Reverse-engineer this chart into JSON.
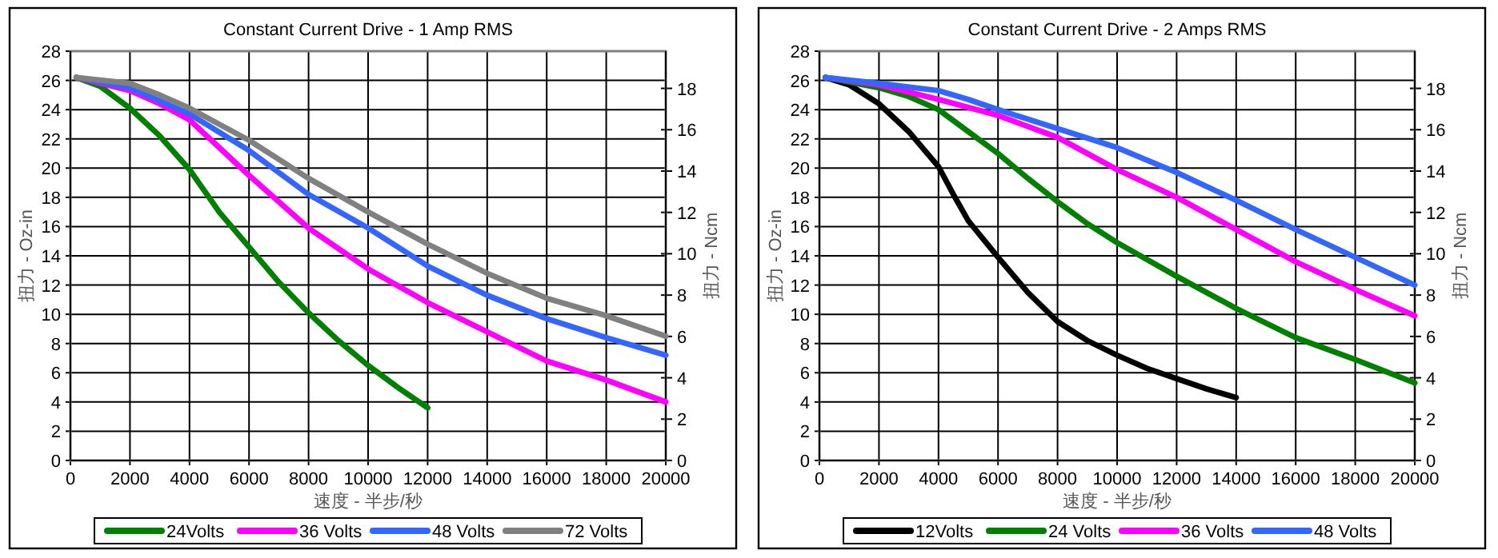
{
  "chart_data": [
    {
      "type": "line",
      "title": "Constant Current Drive - 1 Amp RMS",
      "xlabel": "速度 - 半步/秒",
      "ylabel": "扭力 - Oz-in",
      "y2label": "扭力 - Ncm",
      "xlim": [
        0,
        20000
      ],
      "xticks": [
        0,
        2000,
        4000,
        6000,
        8000,
        10000,
        12000,
        14000,
        16000,
        18000,
        20000
      ],
      "ylim": [
        0,
        28
      ],
      "yticks": [
        0,
        2,
        4,
        6,
        8,
        10,
        12,
        14,
        16,
        18,
        20,
        22,
        24,
        26,
        28
      ],
      "y2lim": [
        0,
        19.8
      ],
      "y2ticks": [
        0,
        2,
        4,
        6,
        8,
        10,
        12,
        14,
        16,
        18
      ],
      "grid": true,
      "legend": "bottom",
      "series": [
        {
          "name": "24Volts",
          "color": "#008000",
          "x": [
            200,
            1000,
            2000,
            3000,
            4000,
            5000,
            6000,
            7000,
            8000,
            9000,
            10000,
            11000,
            12000
          ],
          "values": [
            26.2,
            25.6,
            24.1,
            22.2,
            19.9,
            17.0,
            14.6,
            12.2,
            10.1,
            8.2,
            6.5,
            5.0,
            3.6
          ]
        },
        {
          "name": "36 Volts",
          "color": "#ff00ff",
          "x": [
            200,
            1000,
            2000,
            3000,
            4000,
            5000,
            6000,
            8000,
            10000,
            12000,
            14000,
            16000,
            18000,
            20000
          ],
          "values": [
            26.2,
            25.8,
            25.3,
            24.4,
            23.3,
            21.4,
            19.5,
            15.9,
            13.1,
            10.8,
            8.8,
            6.8,
            5.5,
            4.0
          ]
        },
        {
          "name": "48 Volts",
          "color": "#3366ff",
          "x": [
            200,
            2000,
            4000,
            6000,
            8000,
            10000,
            12000,
            14000,
            16000,
            18000,
            20000
          ],
          "values": [
            26.2,
            25.5,
            23.7,
            21.2,
            18.2,
            15.9,
            13.3,
            11.3,
            9.7,
            8.4,
            7.2
          ]
        },
        {
          "name": "72 Volts",
          "color": "#808080",
          "x": [
            200,
            2000,
            3000,
            4000,
            6000,
            8000,
            10000,
            12000,
            14000,
            16000,
            18000,
            20000
          ],
          "values": [
            26.2,
            25.8,
            25.0,
            24.1,
            21.9,
            19.3,
            17.0,
            14.8,
            12.8,
            11.1,
            9.9,
            8.5
          ]
        }
      ]
    },
    {
      "type": "line",
      "title": "Constant Current Drive - 2 Amps RMS",
      "xlabel": "速度 - 半步/秒",
      "ylabel": "扭力 - Oz-in",
      "y2label": "扭力 - Ncm",
      "xlim": [
        0,
        20000
      ],
      "xticks": [
        0,
        2000,
        4000,
        6000,
        8000,
        10000,
        12000,
        14000,
        16000,
        18000,
        20000
      ],
      "ylim": [
        0,
        28
      ],
      "yticks": [
        0,
        2,
        4,
        6,
        8,
        10,
        12,
        14,
        16,
        18,
        20,
        22,
        24,
        26,
        28
      ],
      "y2lim": [
        0,
        19.8
      ],
      "y2ticks": [
        0,
        2,
        4,
        6,
        8,
        10,
        12,
        14,
        16,
        18
      ],
      "grid": true,
      "legend": "bottom",
      "series": [
        {
          "name": "12Volts",
          "color": "#000000",
          "x": [
            200,
            1000,
            2000,
            3000,
            4000,
            4500,
            5000,
            6000,
            7000,
            8000,
            9000,
            10000,
            11000,
            12000,
            13000,
            14000
          ],
          "values": [
            26.2,
            25.7,
            24.4,
            22.5,
            20.1,
            18.2,
            16.4,
            13.9,
            11.5,
            9.5,
            8.2,
            7.2,
            6.3,
            5.6,
            4.9,
            4.3
          ]
        },
        {
          "name": "24 Volts",
          "color": "#008000",
          "x": [
            200,
            2000,
            3000,
            4000,
            5000,
            6000,
            7000,
            8000,
            9000,
            10000,
            12000,
            14000,
            16000,
            18000,
            20000
          ],
          "values": [
            26.2,
            25.5,
            24.9,
            24.0,
            22.5,
            21.0,
            19.3,
            17.7,
            16.2,
            14.9,
            12.6,
            10.4,
            8.4,
            6.9,
            5.3
          ]
        },
        {
          "name": "36 Volts",
          "color": "#ff00ff",
          "x": [
            200,
            2000,
            4000,
            6000,
            8000,
            10000,
            12000,
            14000,
            16000,
            18000,
            20000
          ],
          "values": [
            26.2,
            25.7,
            24.7,
            23.6,
            22.1,
            19.9,
            18.0,
            15.8,
            13.6,
            11.7,
            9.9
          ]
        },
        {
          "name": "48 Volts",
          "color": "#3366ff",
          "x": [
            200,
            2000,
            4000,
            5000,
            6000,
            8000,
            10000,
            12000,
            14000,
            16000,
            18000,
            20000
          ],
          "values": [
            26.2,
            25.8,
            25.3,
            24.7,
            24.0,
            22.7,
            21.4,
            19.7,
            17.8,
            15.8,
            13.9,
            12.0
          ]
        }
      ]
    }
  ]
}
